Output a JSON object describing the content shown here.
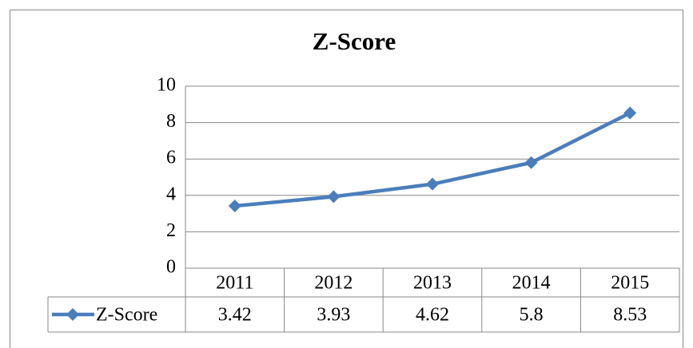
{
  "chart_data": {
    "type": "line",
    "title": "Z-Score",
    "categories": [
      "2011",
      "2012",
      "2013",
      "2014",
      "2015"
    ],
    "series": [
      {
        "name": "Z-Score",
        "color": "#4a7ebb",
        "values": [
          3.42,
          3.93,
          4.62,
          5.8,
          8.53
        ]
      }
    ],
    "ylim": [
      0,
      10
    ],
    "yticks": [
      0,
      2,
      4,
      6,
      8,
      10
    ],
    "grid": true,
    "data_table": true
  }
}
